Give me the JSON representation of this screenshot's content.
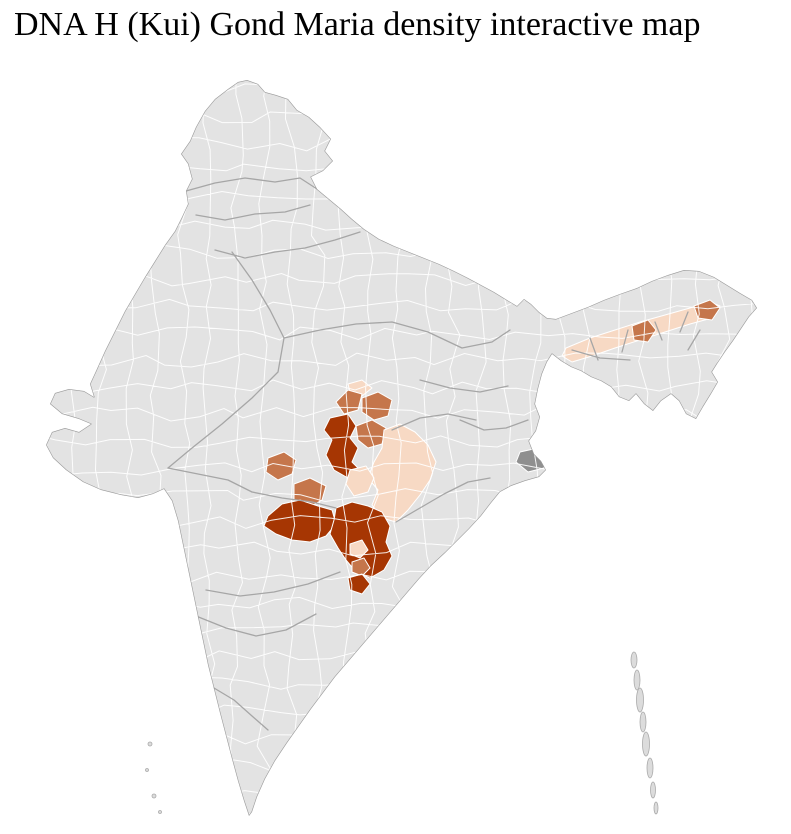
{
  "page": {
    "title": "DNA H (Kui) Gond Maria density interactive map",
    "background_color": "#ffffff",
    "title_color": "#000000"
  },
  "map": {
    "label": "India district-level density choropleth",
    "base_fill": "#e3e3e3",
    "district_border_color": "#ffffff",
    "state_border_color": "#a6a6a6",
    "outline_color": "#9b9b9b",
    "island_fill": "#dcdcdc",
    "island_border_color": "#aaaaaa",
    "density_colors": {
      "high": "#a63603",
      "medium": "#c5764b",
      "low": "#f7d9c4",
      "neutral": "#e3e3e3",
      "neutral_dark": "#8f8f8f"
    },
    "highlighted_regions": [
      {
        "id": "central-india-cluster",
        "levels_present": [
          "high",
          "medium",
          "low"
        ]
      },
      {
        "id": "northeast-valley-band",
        "levels_present": [
          "low",
          "medium"
        ]
      }
    ]
  }
}
